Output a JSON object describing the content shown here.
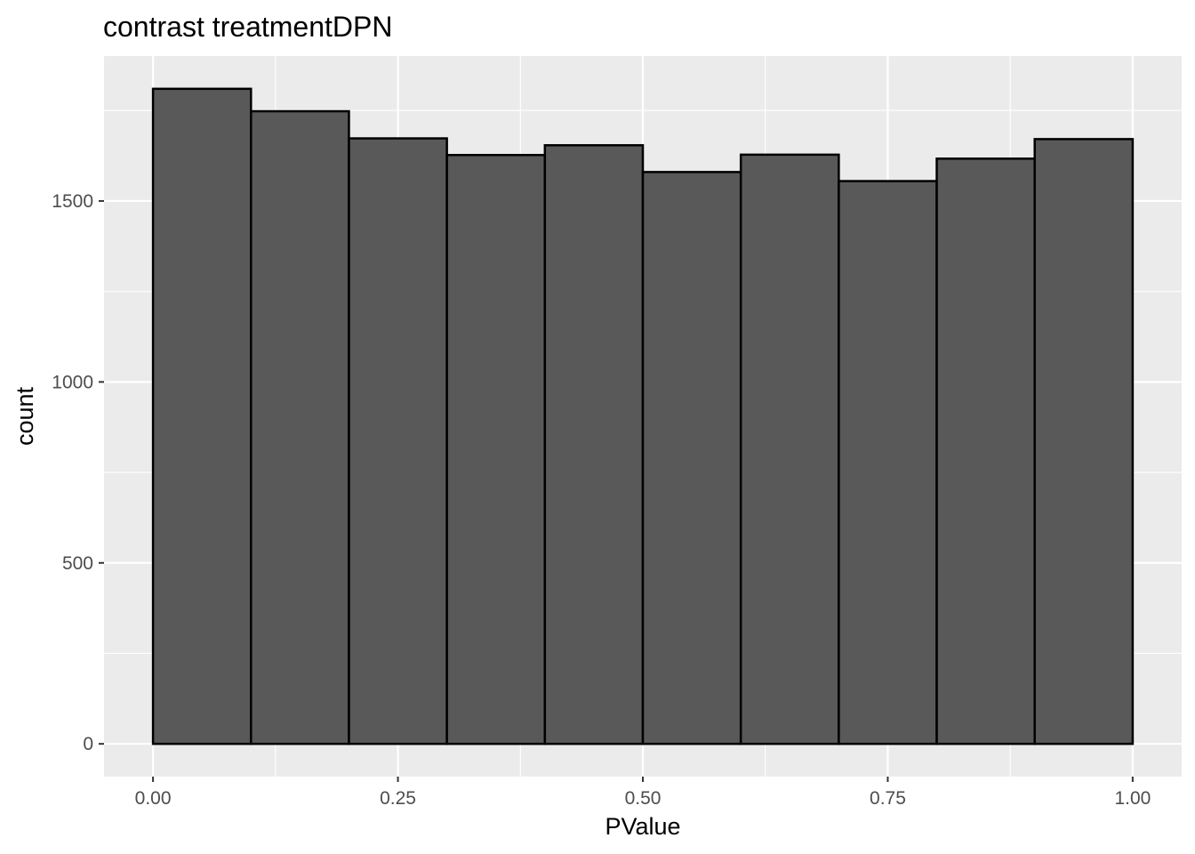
{
  "chart_data": {
    "type": "bar",
    "title": "contrast treatmentDPN",
    "xlabel": "PValue",
    "ylabel": "count",
    "bins": [
      {
        "x0": 0.0,
        "x1": 0.1,
        "count": 1810
      },
      {
        "x0": 0.1,
        "x1": 0.2,
        "count": 1748
      },
      {
        "x0": 0.2,
        "x1": 0.3,
        "count": 1673
      },
      {
        "x0": 0.3,
        "x1": 0.4,
        "count": 1627
      },
      {
        "x0": 0.4,
        "x1": 0.5,
        "count": 1654
      },
      {
        "x0": 0.5,
        "x1": 0.6,
        "count": 1580
      },
      {
        "x0": 0.6,
        "x1": 0.7,
        "count": 1628
      },
      {
        "x0": 0.7,
        "x1": 0.8,
        "count": 1555
      },
      {
        "x0": 0.8,
        "x1": 0.9,
        "count": 1617
      },
      {
        "x0": 0.9,
        "x1": 1.0,
        "count": 1671
      }
    ],
    "xlim": [
      -0.05,
      1.05
    ],
    "ylim": [
      -90.5,
      1900.5
    ],
    "x_ticks": [
      {
        "value": 0.0,
        "label": "0.00"
      },
      {
        "value": 0.25,
        "label": "0.25"
      },
      {
        "value": 0.5,
        "label": "0.50"
      },
      {
        "value": 0.75,
        "label": "0.75"
      },
      {
        "value": 1.0,
        "label": "1.00"
      }
    ],
    "y_ticks": [
      {
        "value": 0,
        "label": "0"
      },
      {
        "value": 500,
        "label": "500"
      },
      {
        "value": 1000,
        "label": "1000"
      },
      {
        "value": 1500,
        "label": "1500"
      }
    ],
    "grid": true,
    "legend": "none",
    "colors": {
      "panel_background": "#ebebeb",
      "grid": "#ffffff",
      "bar_fill": "#595959",
      "bar_outline": "#000000",
      "tick_label": "#4d4d4d"
    }
  }
}
